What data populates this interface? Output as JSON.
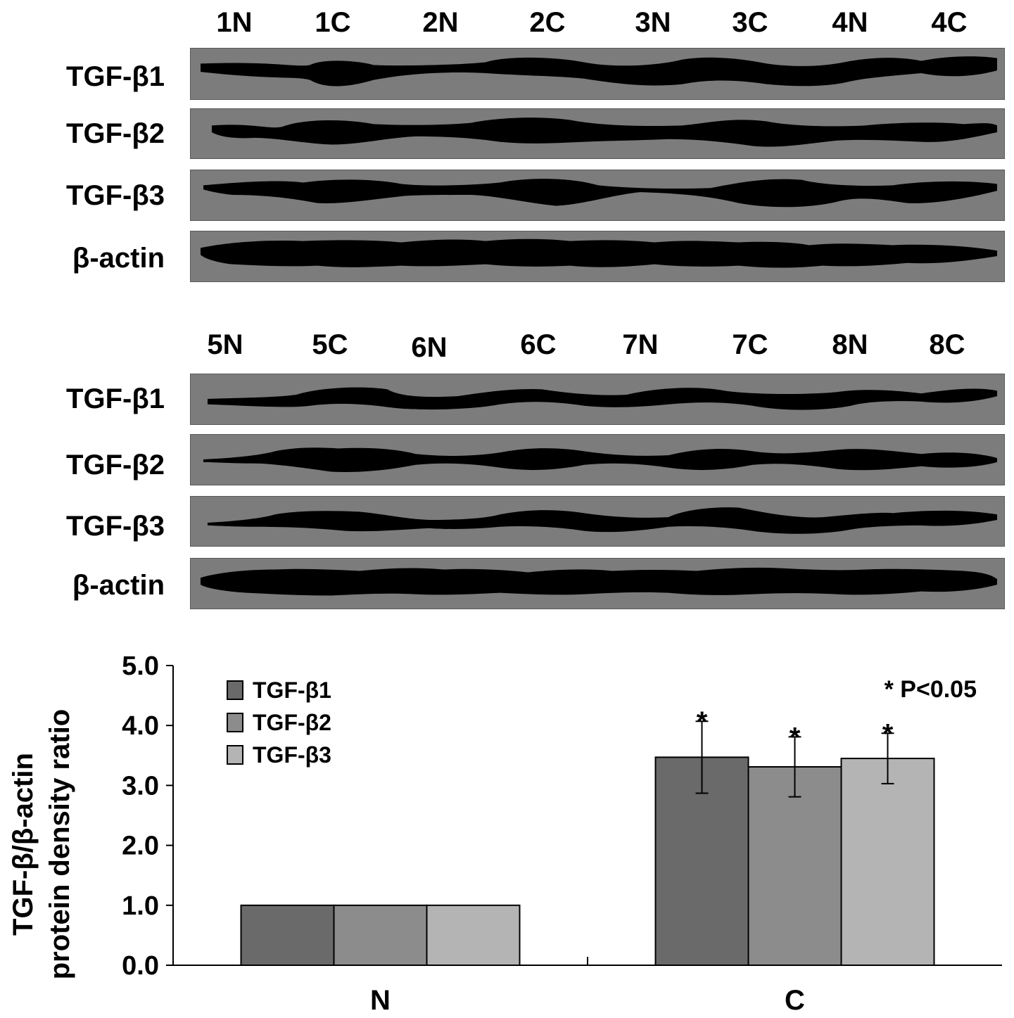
{
  "blots": {
    "panel1": {
      "lanes": [
        "1N",
        "1C",
        "2N",
        "2C",
        "3N",
        "3C",
        "4N",
        "4C"
      ],
      "rows": [
        "TGF-β1",
        "TGF-β2",
        "TGF-β3",
        "β-actin"
      ]
    },
    "panel2": {
      "lanes": [
        "5N",
        "5C",
        "6N",
        "6C",
        "7N",
        "7C",
        "8N",
        "8C"
      ],
      "rows": [
        "TGF-β1",
        "TGF-β2",
        "TGF-β3",
        "β-actin"
      ]
    }
  },
  "colors": {
    "blot_background": "#7c7c7c",
    "band": "#000000",
    "series": [
      "#6a6a6a",
      "#8c8c8c",
      "#b4b4b4"
    ]
  },
  "chart_data": {
    "type": "bar",
    "ylabel": "TGF-β/β-actin protein density ratio",
    "ylabel_lines": [
      "TGF-β/β-actin",
      "protein density ratio"
    ],
    "xlabel": "",
    "categories": [
      "N",
      "C"
    ],
    "ylim": [
      0,
      5
    ],
    "yticks": [
      "0.0",
      "1.0",
      "2.0",
      "3.0",
      "4.0",
      "5.0"
    ],
    "legend_position": "top-left",
    "series": [
      {
        "name": "TGF-β1",
        "values": [
          1.0,
          3.47
        ],
        "errors": [
          null,
          0.6
        ],
        "significance": [
          "",
          "*"
        ]
      },
      {
        "name": "TGF-β2",
        "values": [
          1.0,
          3.31
        ],
        "errors": [
          null,
          0.5
        ],
        "significance": [
          "",
          "*"
        ]
      },
      {
        "name": "TGF-β3",
        "values": [
          1.0,
          3.45
        ],
        "errors": [
          null,
          0.42
        ],
        "significance": [
          "",
          "*"
        ]
      }
    ],
    "annotation": "* P<0.05"
  }
}
